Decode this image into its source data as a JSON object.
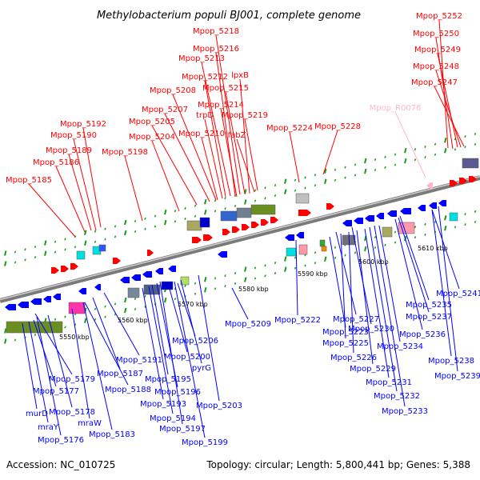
{
  "title": "Methylobacterium populi BJ001, complete genome",
  "footer": {
    "accession": "Accession: NC_010725",
    "topology": "Topology: circular; Length: 5,800,441 bp; Genes: 5,388"
  },
  "colors": {
    "forward_strand": "#ff0000",
    "reverse_strand": "#0000ff",
    "rna": "#ffb6d0",
    "backbone": "#888888",
    "tick": "#1a9a1a"
  },
  "scale_labels": [
    "5550 kbp",
    "5560 kbp",
    "5570 kbp",
    "5580 kbp",
    "5590 kbp",
    "5600 kbp",
    "5610 kbp"
  ],
  "top_labels": [
    {
      "text": "Mpop_5252",
      "rna": false
    },
    {
      "text": "Mpop_5250",
      "rna": false
    },
    {
      "text": "Mpop_5249",
      "rna": false
    },
    {
      "text": "Mpop_5248",
      "rna": false
    },
    {
      "text": "Mpop_5247",
      "rna": false
    },
    {
      "text": "Mpop_5218",
      "rna": false
    },
    {
      "text": "Mpop_5216",
      "rna": false
    },
    {
      "text": "Mpop_5213",
      "rna": false
    },
    {
      "text": "Mpop_5212",
      "rna": false
    },
    {
      "text": "lpxB",
      "rna": false
    },
    {
      "text": "Mpop_5208",
      "rna": false
    },
    {
      "text": "Mpop_5215",
      "rna": false
    },
    {
      "text": "Mpop_5214",
      "rna": false
    },
    {
      "text": "Mpop_5207",
      "rna": false
    },
    {
      "text": "trpD",
      "rna": false
    },
    {
      "text": "Mpop_5219",
      "rna": false
    },
    {
      "text": "Mpop_5205",
      "rna": false
    },
    {
      "text": "Mpop_R0076",
      "rna": true
    },
    {
      "text": "Mpop_5192",
      "rna": false
    },
    {
      "text": "Mpop_5224",
      "rna": false
    },
    {
      "text": "Mpop_5228",
      "rna": false
    },
    {
      "text": "Mpop_5190",
      "rna": false
    },
    {
      "text": "Mpop_5204",
      "rna": false
    },
    {
      "text": "Mpop_5210",
      "rna": false
    },
    {
      "text": "fabZ",
      "rna": false
    },
    {
      "text": "Mpop_5189",
      "rna": false
    },
    {
      "text": "Mpop_5198",
      "rna": false
    },
    {
      "text": "Mpop_5186",
      "rna": false
    },
    {
      "text": "Mpop_5185",
      "rna": false
    }
  ],
  "bottom_labels": [
    "Mpop_5241",
    "Mpop_5235",
    "Mpop_5237",
    "Mpop_5236",
    "Mpop_5227",
    "Mpop_5222",
    "Mpop_5209",
    "Mpop_5230",
    "Mpop_5223",
    "Mpop_5225",
    "Mpop_5206",
    "Mpop_5234",
    "Mpop_5226",
    "Mpop_5191",
    "Mpop_5200",
    "Mpop_5187",
    "Mpop_5179",
    "Mpop_5195",
    "Mpop_5188",
    "pyrG",
    "Mpop_5238",
    "Mpop_5229",
    "Mpop_5239",
    "Mpop_5231",
    "Mpop_5196",
    "Mpop_5177",
    "Mpop_5232",
    "Mpop_5193",
    "Mpop_5203",
    "murD",
    "Mpop_5178",
    "Mpop_5194",
    "Mpop_5233",
    "mraW",
    "mraY",
    "Mpop_5197",
    "Mpop_5183",
    "Mpop_5176",
    "Mpop_5199"
  ]
}
